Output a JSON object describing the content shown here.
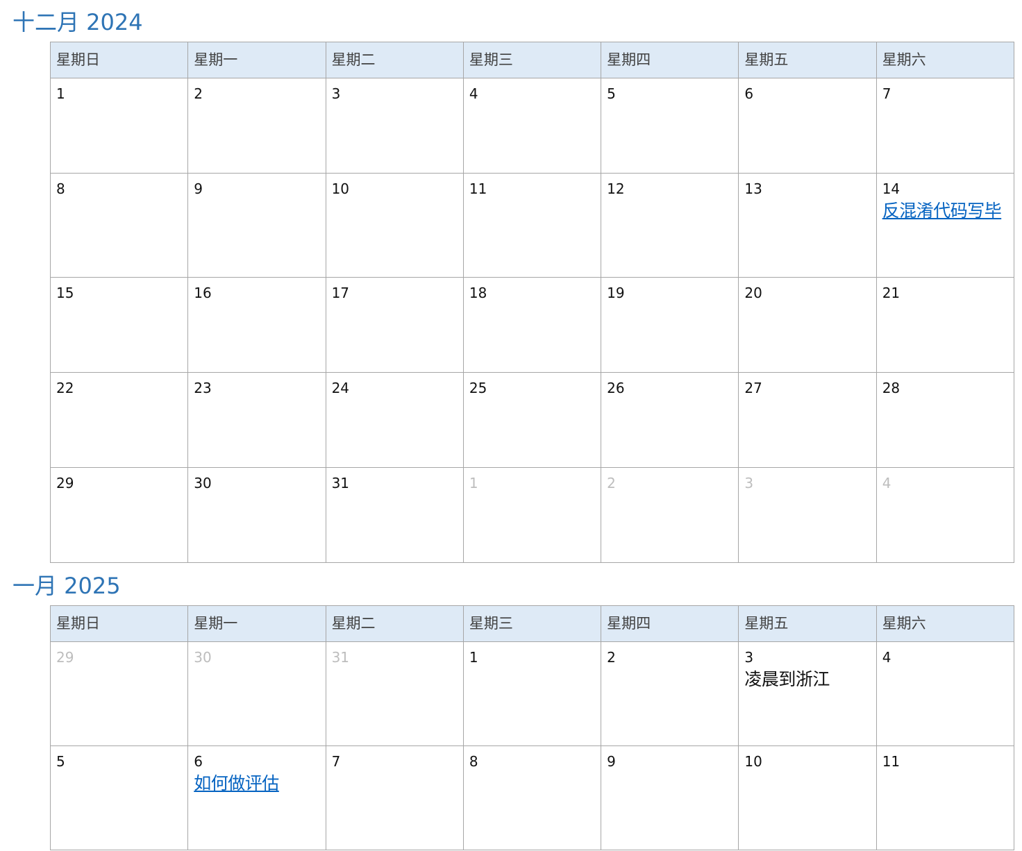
{
  "calendars": [
    {
      "title": "十二月 2024",
      "weekdays": [
        "星期日",
        "星期一",
        "星期二",
        "星期三",
        "星期四",
        "星期五",
        "星期六"
      ],
      "weeks": [
        [
          {
            "day": "1"
          },
          {
            "day": "2"
          },
          {
            "day": "3"
          },
          {
            "day": "4"
          },
          {
            "day": "5"
          },
          {
            "day": "6"
          },
          {
            "day": "7"
          }
        ],
        [
          {
            "day": "8"
          },
          {
            "day": "9"
          },
          {
            "day": "10"
          },
          {
            "day": "11"
          },
          {
            "day": "12"
          },
          {
            "day": "13"
          },
          {
            "day": "14",
            "event": "反混淆代码写毕",
            "event_link": true
          }
        ],
        [
          {
            "day": "15"
          },
          {
            "day": "16"
          },
          {
            "day": "17"
          },
          {
            "day": "18"
          },
          {
            "day": "19"
          },
          {
            "day": "20"
          },
          {
            "day": "21"
          }
        ],
        [
          {
            "day": "22"
          },
          {
            "day": "23"
          },
          {
            "day": "24"
          },
          {
            "day": "25"
          },
          {
            "day": "26"
          },
          {
            "day": "27"
          },
          {
            "day": "28"
          }
        ],
        [
          {
            "day": "29"
          },
          {
            "day": "30"
          },
          {
            "day": "31"
          },
          {
            "day": "1",
            "muted": true
          },
          {
            "day": "2",
            "muted": true
          },
          {
            "day": "3",
            "muted": true
          },
          {
            "day": "4",
            "muted": true
          }
        ]
      ]
    },
    {
      "title": "一月 2025",
      "weekdays": [
        "星期日",
        "星期一",
        "星期二",
        "星期三",
        "星期四",
        "星期五",
        "星期六"
      ],
      "weeks": [
        [
          {
            "day": "29",
            "muted": true
          },
          {
            "day": "30",
            "muted": true
          },
          {
            "day": "31",
            "muted": true
          },
          {
            "day": "1"
          },
          {
            "day": "2"
          },
          {
            "day": "3",
            "event": "凌晨到浙江",
            "event_link": false
          },
          {
            "day": "4"
          }
        ],
        [
          {
            "day": "5"
          },
          {
            "day": "6",
            "event": "如何做评估",
            "event_link": true
          },
          {
            "day": "7"
          },
          {
            "day": "8"
          },
          {
            "day": "9"
          },
          {
            "day": "10"
          },
          {
            "day": "11"
          }
        ]
      ]
    }
  ],
  "colors": {
    "title": "#2e74b5",
    "header_bg": "#deeaf6",
    "link": "#0563c1",
    "muted": "#bdbdbd",
    "border": "#a6a6a6"
  }
}
